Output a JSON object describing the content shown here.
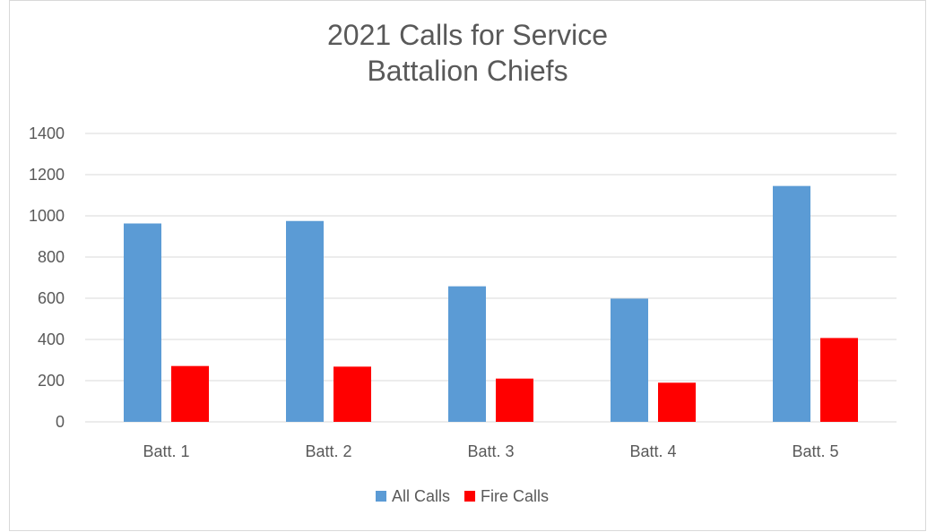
{
  "chart_data": {
    "type": "bar",
    "title": "2021 Calls for Service",
    "subtitle": "Battalion Chiefs",
    "categories": [
      "Batt. 1",
      "Batt. 2",
      "Batt. 3",
      "Batt. 4",
      "Batt. 5"
    ],
    "series": [
      {
        "name": "All Calls",
        "color": "#5b9bd5",
        "values": [
          963,
          975,
          658,
          598,
          1145
        ]
      },
      {
        "name": "Fire Calls",
        "color": "#ff0000",
        "values": [
          271,
          268,
          210,
          190,
          407
        ]
      }
    ],
    "ylim": [
      0,
      1400
    ],
    "yticks": [
      0,
      200,
      400,
      600,
      800,
      1000,
      1200,
      1400
    ],
    "grid": true,
    "legend": "bottom",
    "xlabel": "",
    "ylabel": ""
  }
}
